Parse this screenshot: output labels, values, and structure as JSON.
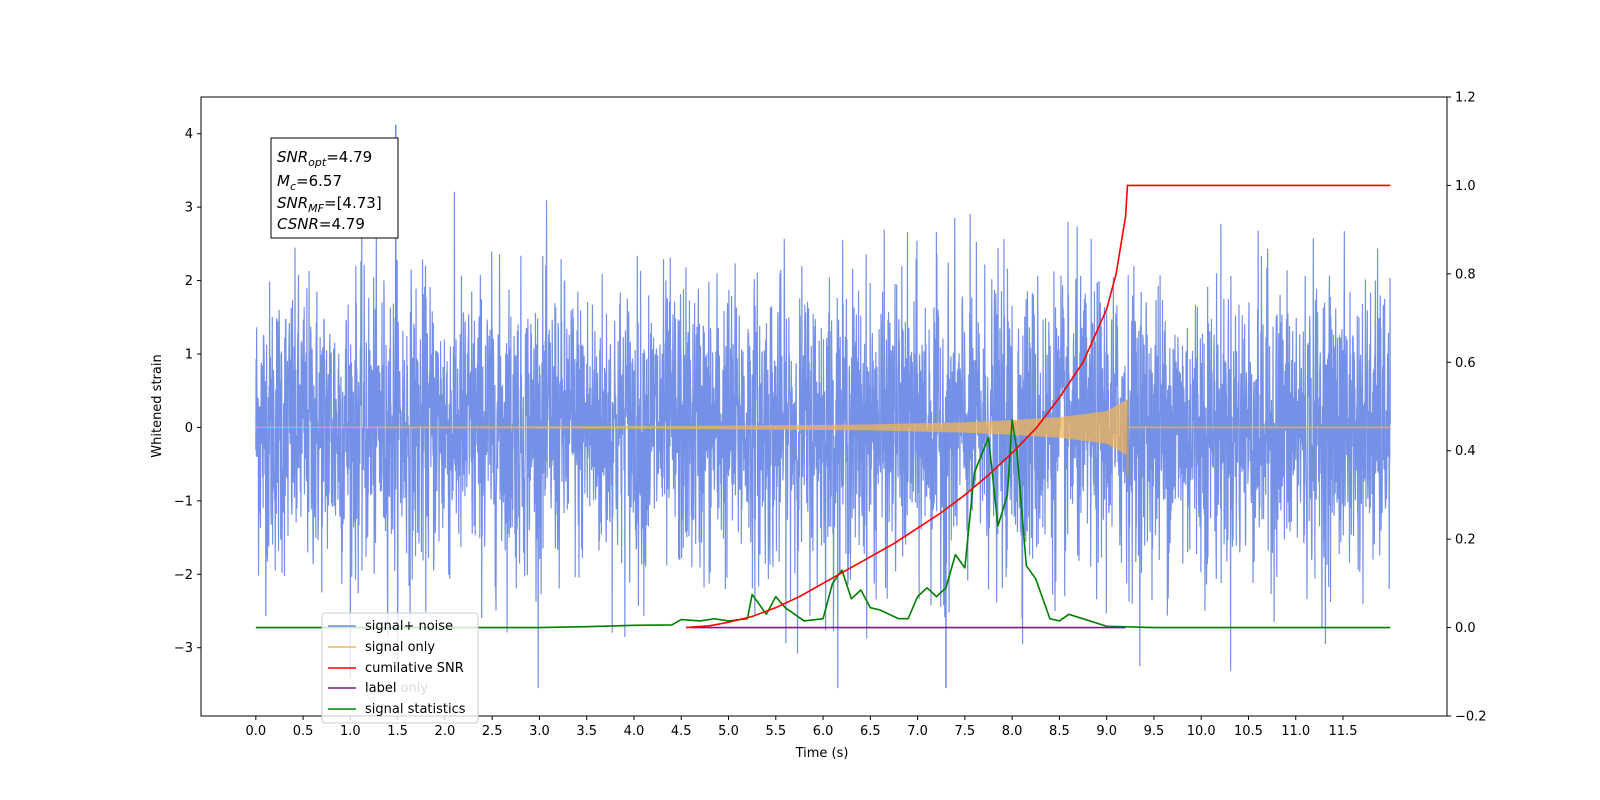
{
  "chart_data": {
    "type": "line",
    "title": "",
    "xlabel": "Time (s)",
    "ylabel": "Whitened strain",
    "xlim": [
      -0.58,
      12.6
    ],
    "ylim": [
      -3.93,
      4.5
    ],
    "y2lim": [
      -0.2,
      1.2
    ],
    "x_ticks": [
      0.0,
      0.5,
      1.0,
      1.5,
      2.0,
      2.5,
      3.0,
      3.5,
      4.0,
      4.5,
      5.0,
      5.5,
      6.0,
      6.5,
      7.0,
      7.5,
      8.0,
      8.5,
      9.0,
      9.5,
      10.0,
      10.5,
      11.0,
      11.5
    ],
    "x_tick_labels": [
      "0.0",
      "0.5",
      "1.0",
      "1.5",
      "2.0",
      "2.5",
      "3.0",
      "3.5",
      "4.0",
      "4.5",
      "5.0",
      "5.5",
      "6.0",
      "6.5",
      "7.0",
      "7.5",
      "8.0",
      "8.5",
      "9.0",
      "9.5",
      "10.0",
      "10.5",
      "11.0",
      "11.5"
    ],
    "y_ticks": [
      -3,
      -2,
      -1,
      0,
      1,
      2,
      3,
      4
    ],
    "y_tick_labels": [
      "−3",
      "−2",
      "−1",
      "0",
      "1",
      "2",
      "3",
      "4"
    ],
    "y2_ticks": [
      -0.2,
      0.0,
      0.2,
      0.4,
      0.6,
      0.8,
      1.0,
      1.2
    ],
    "y2_tick_labels": [
      "−0.2",
      "0.0",
      "0.2",
      "0.4",
      "0.6",
      "0.8",
      "1.0",
      "1.2"
    ],
    "legend_position": "lower-left",
    "series": [
      {
        "name": "signal+ noise",
        "color": "#6e8ae6",
        "axis": "left",
        "kind": "noise",
        "x_range": [
          0.0,
          12.0
        ],
        "amplitude_std": 1.0,
        "max": 4.12,
        "min": -3.55
      },
      {
        "name": "signal only",
        "color": "#f2b457",
        "axis": "left",
        "kind": "chirp",
        "x_range": [
          0.0,
          12.0
        ],
        "merger_time": 9.22,
        "peak_amplitude": [
          0.38,
          -0.65
        ],
        "envelope": [
          [
            0.0,
            0.005
          ],
          [
            4.5,
            0.02
          ],
          [
            6.5,
            0.04
          ],
          [
            7.5,
            0.07
          ],
          [
            8.0,
            0.1
          ],
          [
            8.5,
            0.14
          ],
          [
            9.0,
            0.22
          ],
          [
            9.22,
            0.38
          ]
        ]
      },
      {
        "name": "cumilative SNR",
        "color": "#ff0000",
        "axis": "right",
        "x": [
          4.55,
          4.8,
          5.0,
          5.25,
          5.5,
          5.75,
          6.0,
          6.25,
          6.5,
          6.75,
          7.0,
          7.25,
          7.5,
          7.75,
          8.0,
          8.25,
          8.5,
          8.75,
          9.0,
          9.1,
          9.2,
          9.22,
          12.0
        ],
        "y": [
          0.0,
          0.004,
          0.012,
          0.025,
          0.045,
          0.07,
          0.1,
          0.13,
          0.16,
          0.19,
          0.225,
          0.26,
          0.3,
          0.345,
          0.395,
          0.45,
          0.52,
          0.6,
          0.72,
          0.8,
          0.93,
          1.0,
          1.0
        ]
      },
      {
        "name": "label",
        "color": "#7b1c80",
        "axis": "right",
        "x": [
          4.6,
          9.2
        ],
        "y": [
          0.0,
          0.0
        ]
      },
      {
        "name": "label only",
        "color": "#ffffff",
        "axis": "right",
        "x": [],
        "y": []
      },
      {
        "name": "signal statistics",
        "color": "#008000",
        "axis": "right",
        "x": [
          0.0,
          3.0,
          3.5,
          4.0,
          4.4,
          4.5,
          4.7,
          4.85,
          5.0,
          5.2,
          5.25,
          5.4,
          5.5,
          5.6,
          5.8,
          6.0,
          6.1,
          6.2,
          6.3,
          6.4,
          6.5,
          6.6,
          6.8,
          6.9,
          7.0,
          7.1,
          7.2,
          7.3,
          7.4,
          7.5,
          7.6,
          7.75,
          7.85,
          7.95,
          8.0,
          8.05,
          8.15,
          8.25,
          8.4,
          8.5,
          8.6,
          9.0,
          9.5,
          12.0
        ],
        "y": [
          0.0,
          0.0,
          0.002,
          0.005,
          0.006,
          0.018,
          0.015,
          0.02,
          0.015,
          0.02,
          0.075,
          0.03,
          0.07,
          0.045,
          0.015,
          0.02,
          0.1,
          0.13,
          0.065,
          0.085,
          0.045,
          0.04,
          0.02,
          0.02,
          0.07,
          0.09,
          0.07,
          0.09,
          0.165,
          0.135,
          0.35,
          0.43,
          0.23,
          0.3,
          0.47,
          0.4,
          0.14,
          0.11,
          0.02,
          0.015,
          0.03,
          0.003,
          0.0,
          0.0
        ]
      }
    ],
    "annotation": {
      "lines": [
        {
          "base": "SNR",
          "sub": "opt",
          "rest": "=4.79"
        },
        {
          "base": "M",
          "sub": "c",
          "rest": "=6.57"
        },
        {
          "base": "SNR",
          "sub": "MF",
          "rest": "=[4.73]"
        },
        {
          "base": "CSNR",
          "sub": "",
          "rest": "=4.79"
        }
      ]
    }
  }
}
